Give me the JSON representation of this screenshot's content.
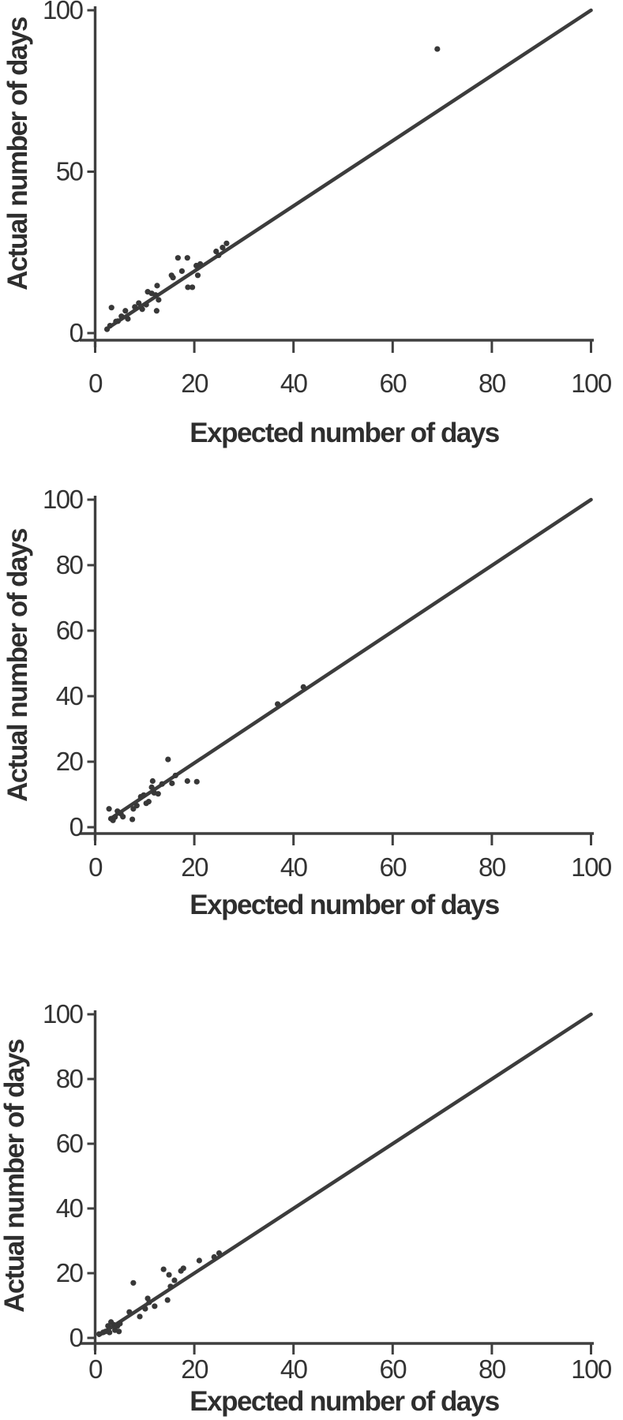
{
  "colors": {
    "ink": "#333333",
    "axis_line": "#3f3f3f",
    "identity_line": "#3c3c3c",
    "point": "#383838",
    "background": "#ffffff"
  },
  "chart_data": [
    {
      "type": "scatter",
      "title": "",
      "xlabel": "Expected number of days",
      "ylabel": "Actual number of days",
      "xlim": [
        0,
        100
      ],
      "ylim": [
        0,
        100
      ],
      "x_ticks": [
        0,
        20,
        40,
        60,
        80,
        100
      ],
      "y_ticks": [
        0,
        50,
        100
      ],
      "grid": false,
      "legend": "none",
      "identity_line": {
        "from": [
          2.6,
          1.6
        ],
        "to": [
          100,
          100
        ]
      },
      "points": [
        [
          2.4,
          1.2
        ],
        [
          3,
          2.3
        ],
        [
          3.3,
          7.9
        ],
        [
          4.2,
          3.6
        ],
        [
          4.6,
          3.7
        ],
        [
          5.3,
          5.2
        ],
        [
          6.1,
          6.9
        ],
        [
          6.6,
          4.4
        ],
        [
          8,
          8.1
        ],
        [
          8.8,
          9.3
        ],
        [
          9.5,
          7.4
        ],
        [
          10.3,
          8.8
        ],
        [
          10.6,
          12.8
        ],
        [
          11.4,
          12.3
        ],
        [
          12.2,
          11.8
        ],
        [
          12.4,
          6.9
        ],
        [
          12.5,
          14.7
        ],
        [
          12.8,
          10.3
        ],
        [
          15.4,
          17.9
        ],
        [
          15.7,
          17.2
        ],
        [
          16.7,
          23.3
        ],
        [
          17.5,
          19.2
        ],
        [
          18.6,
          23.3
        ],
        [
          18.7,
          14.2
        ],
        [
          19.6,
          14.2
        ],
        [
          20.4,
          20.9
        ],
        [
          20.7,
          17.9
        ],
        [
          21.2,
          21.4
        ],
        [
          24.4,
          25.3
        ],
        [
          24.9,
          24.1
        ],
        [
          25.7,
          26.5
        ],
        [
          26.5,
          27.8
        ],
        [
          69,
          88
        ]
      ]
    },
    {
      "type": "scatter",
      "title": "",
      "xlabel": "Expected number of days",
      "ylabel": "Actual number of days",
      "xlim": [
        0,
        100
      ],
      "ylim": [
        0,
        100
      ],
      "x_ticks": [
        0,
        20,
        40,
        60,
        80,
        100
      ],
      "y_ticks": [
        0,
        20,
        40,
        60,
        80,
        100
      ],
      "grid": false,
      "legend": "none",
      "identity_line": {
        "from": [
          3,
          2.5
        ],
        "to": [
          100,
          100
        ]
      },
      "points": [
        [
          2.8,
          5.6
        ],
        [
          3.2,
          2.6
        ],
        [
          3.6,
          2.1
        ],
        [
          4,
          3.1
        ],
        [
          4.5,
          4.9
        ],
        [
          5.2,
          4.1
        ],
        [
          5.6,
          3.2
        ],
        [
          7.5,
          2.4
        ],
        [
          7.7,
          5.6
        ],
        [
          8.4,
          6.6
        ],
        [
          9.2,
          9.3
        ],
        [
          9.8,
          9.8
        ],
        [
          10.3,
          7.3
        ],
        [
          10.8,
          7.8
        ],
        [
          11.4,
          12.2
        ],
        [
          11.6,
          14.1
        ],
        [
          11.9,
          10.5
        ],
        [
          12.7,
          10.2
        ],
        [
          13.5,
          13.2
        ],
        [
          14.7,
          20.7
        ],
        [
          15.5,
          13.4
        ],
        [
          16.2,
          15.8
        ],
        [
          18.6,
          14.1
        ],
        [
          20.5,
          13.9
        ],
        [
          36.8,
          37.6
        ],
        [
          42,
          42.8
        ]
      ]
    },
    {
      "type": "scatter",
      "title": "",
      "xlabel": "Expected number of days",
      "ylabel": "Actual number of days",
      "xlim": [
        0,
        100
      ],
      "ylim": [
        0,
        100
      ],
      "x_ticks": [
        0,
        20,
        40,
        60,
        80,
        100
      ],
      "y_ticks": [
        0,
        20,
        40,
        60,
        80,
        100
      ],
      "grid": false,
      "legend": "none",
      "identity_line": {
        "from": [
          0.8,
          0.8
        ],
        "to": [
          100,
          100
        ]
      },
      "points": [
        [
          0.8,
          1.2
        ],
        [
          1.6,
          1.7
        ],
        [
          2.1,
          2
        ],
        [
          2.6,
          3.7
        ],
        [
          2.9,
          1.7
        ],
        [
          3.2,
          4.9
        ],
        [
          3.7,
          4.1
        ],
        [
          4,
          2.4
        ],
        [
          4.5,
          3.7
        ],
        [
          4.8,
          2
        ],
        [
          5,
          4.4
        ],
        [
          6.9,
          8
        ],
        [
          7.7,
          17
        ],
        [
          9,
          6.6
        ],
        [
          10.1,
          9
        ],
        [
          10.6,
          12.2
        ],
        [
          10.9,
          11
        ],
        [
          12,
          9.8
        ],
        [
          13.8,
          21.2
        ],
        [
          14.6,
          11.7
        ],
        [
          14.9,
          19.5
        ],
        [
          15.2,
          15.9
        ],
        [
          16,
          17.8
        ],
        [
          17.3,
          20.7
        ],
        [
          17.8,
          21.5
        ],
        [
          21,
          23.9
        ],
        [
          24,
          25
        ],
        [
          25,
          26.2
        ]
      ]
    }
  ]
}
